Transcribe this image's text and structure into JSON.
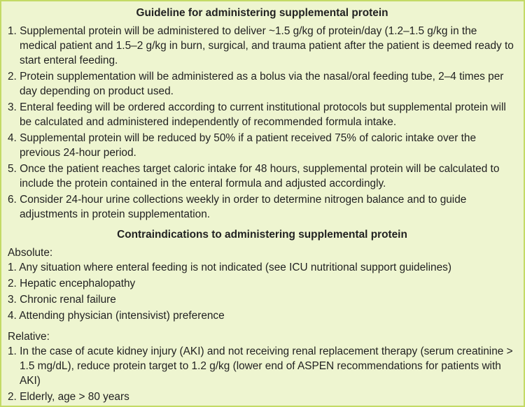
{
  "guideline": {
    "title": "Guideline for administering supplemental protein",
    "items": [
      "1. Supplemental protein will be administered to deliver ~1.5 g/kg of protein/day (1.2–1.5 g/kg in the medical patient and 1.5–2 g/kg in burn, surgical, and trauma patient after the patient is deemed ready to start enteral feeding.",
      "2. Protein supplementation will be administered as a bolus via the nasal/oral feeding tube, 2–4 times per day depending on product used.",
      "3. Enteral feeding will be ordered according to current institutional protocols but supplemental protein will be calculated and administered independently of recommended formula intake.",
      "4. Supplemental protein will be reduced by 50% if a patient received 75% of caloric intake over the previous 24-hour period.",
      "5. Once the patient reaches target caloric intake for 48 hours, supplemental protein will be calculated to include the protein contained in the enteral formula and adjusted accordingly.",
      "6. Consider 24-hour urine collections weekly in order to determine nitrogen balance and to guide adjustments in protein supplementation."
    ]
  },
  "contraindications": {
    "title": "Contraindications to administering supplemental protein",
    "absolute_label": "Absolute:",
    "absolute": [
      "1. Any situation where enteral feeding is not indicated (see ICU nutritional support guidelines)",
      "2. Hepatic encephalopathy",
      "3. Chronic renal failure",
      "4. Attending physician (intensivist) preference"
    ],
    "relative_label": "Relative:",
    "relative": [
      "1. In the case of acute kidney injury (AKI) and not receiving renal replacement therapy (serum creatinine > 1.5 mg/dL), reduce protein target to 1.2 g/kg (lower end of ASPEN recommendations for patients with AKI)",
      "2. Elderly, age > 80 years"
    ]
  }
}
